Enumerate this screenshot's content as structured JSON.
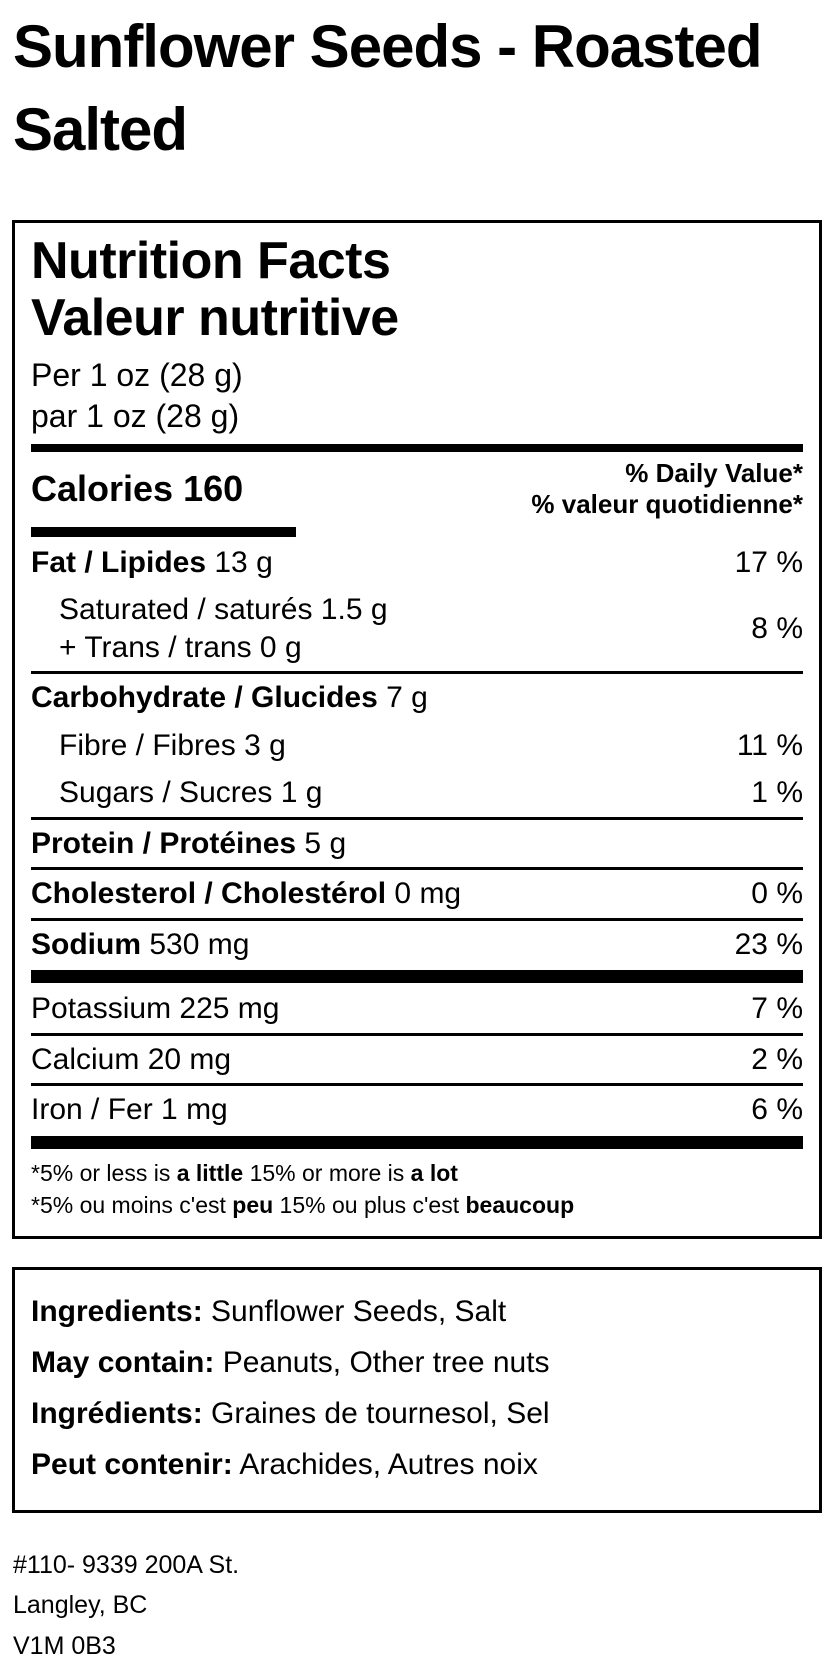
{
  "colors": {
    "text": "#000000",
    "background": "#ffffff"
  },
  "page": {
    "title": "Sunflower Seeds - Roasted Salted"
  },
  "nutrition_facts": {
    "heading_en": "Nutrition Facts",
    "heading_fr": "Valeur nutritive",
    "serving_en": "Per 1 oz (28 g)",
    "serving_fr": "par 1 oz (28 g)",
    "calories_label": "Calories",
    "calories_value": "160",
    "daily_value_en": "% Daily Value*",
    "daily_value_fr": "% valeur quotidienne*",
    "rows": {
      "fat": {
        "name": "Fat / Lipides",
        "amount": "13 g",
        "dv": "17 %"
      },
      "sat_trans": {
        "line1": "Saturated / saturés 1.5 g",
        "line2": "+ Trans / trans 0 g",
        "dv": "8 %"
      },
      "carb": {
        "name": "Carbohydrate / Glucides",
        "amount": "7 g",
        "dv": ""
      },
      "fibre": {
        "name": "Fibre / Fibres",
        "amount": "3 g",
        "dv": "11 %"
      },
      "sugars": {
        "name": "Sugars / Sucres",
        "amount": "1 g",
        "dv": "1 %"
      },
      "protein": {
        "name": "Protein / Protéines",
        "amount": "5 g",
        "dv": ""
      },
      "cholesterol": {
        "name": "Cholesterol / Cholestérol",
        "amount": "0 mg",
        "dv": "0 %"
      },
      "sodium": {
        "name": "Sodium",
        "amount": "530 mg",
        "dv": "23 %"
      },
      "potassium": {
        "name": "Potassium",
        "amount": "225 mg",
        "dv": "7 %"
      },
      "calcium": {
        "name": "Calcium",
        "amount": "20 mg",
        "dv": "2 %"
      },
      "iron": {
        "name": "Iron / Fer",
        "amount": "1 mg",
        "dv": "6 %"
      }
    },
    "footnote_en": {
      "p1": "*5% or less is ",
      "b1": "a little",
      "p2": " 15% or more is ",
      "b2": "a lot"
    },
    "footnote_fr": {
      "p1": "*5% ou moins c'est ",
      "b1": "peu",
      "p2": " 15% ou plus c'est ",
      "b2": "beaucoup"
    }
  },
  "ingredients": {
    "ing_en": {
      "label": "Ingredients:",
      "text": " Sunflower Seeds, Salt"
    },
    "may_en": {
      "label": "May contain:",
      "text": " Peanuts, Other tree nuts"
    },
    "ing_fr": {
      "label": "Ingrédients:",
      "text": " Graines de tournesol, Sel"
    },
    "may_fr": {
      "label": "Peut contenir:",
      "text": " Arachides, Autres noix"
    }
  },
  "address": {
    "line1": "#110- 9339 200A St.",
    "line2": "Langley, BC",
    "line3": "V1M 0B3"
  }
}
